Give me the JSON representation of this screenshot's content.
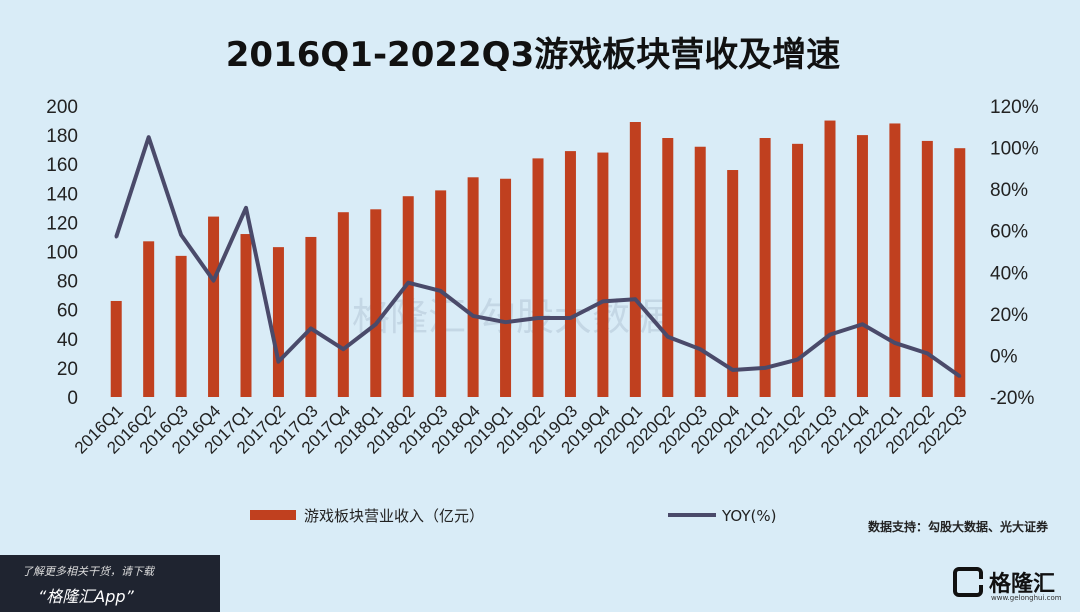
{
  "title": "2016Q1-2022Q3游戏板块营收及增速",
  "source_note": "数据支持：勾股大数据、光大证券",
  "watermark": "格隆汇  勾股大数据",
  "footer": {
    "line1": "了解更多相关干货，请下载",
    "line2": "“格隆汇App”"
  },
  "brand": {
    "name": "格隆汇",
    "url": "www.gelonghui.com"
  },
  "colors": {
    "bar": "#c0401f",
    "line": "#4a4a6a",
    "background": "#d9ecf7"
  },
  "chart_data": {
    "type": "bar",
    "categories": [
      "2016Q1",
      "2016Q2",
      "2016Q3",
      "2016Q4",
      "2017Q1",
      "2017Q2",
      "2017Q3",
      "2017Q4",
      "2018Q1",
      "2018Q2",
      "2018Q3",
      "2018Q4",
      "2019Q1",
      "2019Q2",
      "2019Q3",
      "2019Q4",
      "2020Q1",
      "2020Q2",
      "2020Q3",
      "2020Q4",
      "2021Q1",
      "2021Q2",
      "2021Q3",
      "2021Q4",
      "2022Q1",
      "2022Q2",
      "2022Q3"
    ],
    "series": [
      {
        "name": "游戏板块营业收入（亿元）",
        "type": "bar",
        "axis": "left",
        "values": [
          66,
          107,
          97,
          124,
          112,
          103,
          110,
          127,
          129,
          138,
          142,
          151,
          150,
          164,
          169,
          168,
          189,
          178,
          172,
          156,
          178,
          174,
          190,
          180,
          188,
          176,
          171
        ]
      },
      {
        "name": "YOY(%)",
        "type": "line",
        "axis": "right",
        "values": [
          57,
          105,
          58,
          36,
          71,
          -3,
          13,
          3,
          15,
          35,
          31,
          19,
          16,
          18,
          18,
          26,
          27,
          9,
          3,
          -7,
          -6,
          -2,
          10,
          15,
          6,
          1,
          -10
        ]
      }
    ],
    "left_axis": {
      "min": 0,
      "max": 200,
      "ticks": [
        "0",
        "20",
        "40",
        "60",
        "80",
        "100",
        "120",
        "140",
        "160",
        "180",
        "200"
      ]
    },
    "right_axis": {
      "min": -20,
      "max": 120,
      "ticks": [
        "-20%",
        "0%",
        "20%",
        "40%",
        "60%",
        "80%",
        "100%",
        "120%"
      ]
    },
    "legend_position": "bottom"
  }
}
